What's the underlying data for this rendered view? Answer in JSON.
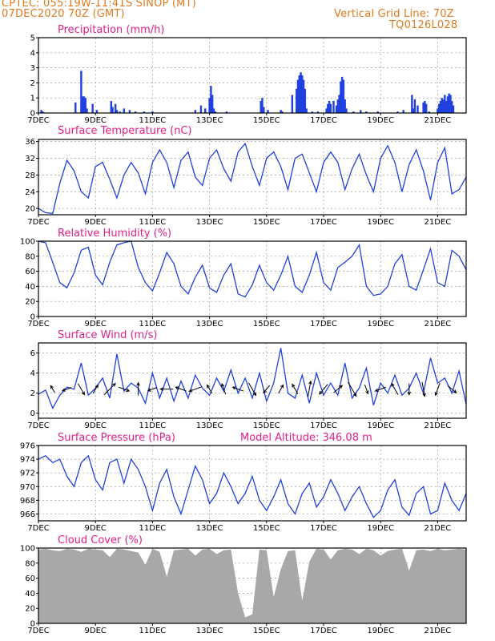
{
  "header": {
    "line1": "CPTEC:   055:19W-11:41S   SINOP (MT)",
    "line2": "07DEC2020 70Z (GMT)",
    "grid_note": "Vertical Grid Line: 70Z",
    "code": "TQ0126L028"
  },
  "colors": {
    "series": "#2040e0",
    "title": "#e0208a",
    "header": "#e07a20",
    "cloud": "#a8a8a8",
    "arrow": "#000000"
  },
  "x_ticks": [
    "7DEC",
    "9DEC",
    "11DEC",
    "13DEC",
    "15DEC",
    "17DEC",
    "19DEC",
    "21DEC"
  ],
  "x_tick_day": [
    7,
    9,
    11,
    13,
    15,
    17,
    19,
    21
  ],
  "x_range_days": [
    7,
    22
  ],
  "chart_data": [
    {
      "type": "bar",
      "title": "Precipitation (mm/h)",
      "ylim": [
        0,
        5
      ],
      "yticks": [
        0,
        1,
        2,
        3,
        4,
        5
      ],
      "x_day": [
        7.1,
        7.15,
        8.3,
        8.5,
        8.55,
        8.6,
        8.65,
        8.7,
        8.9,
        9.05,
        9.55,
        9.6,
        9.7,
        9.75,
        9.85,
        10.0,
        10.2,
        10.4,
        10.7,
        11.0,
        12.5,
        12.7,
        12.85,
        13.0,
        13.05,
        13.1,
        13.15,
        13.2,
        13.6,
        14.8,
        14.85,
        14.9,
        15.05,
        15.5,
        15.55,
        15.9,
        16.05,
        16.1,
        16.15,
        16.2,
        16.25,
        16.3,
        16.35,
        16.4,
        16.6,
        16.8,
        17.1,
        17.15,
        17.2,
        17.25,
        17.35,
        17.45,
        17.5,
        17.55,
        17.6,
        17.65,
        17.7,
        17.75,
        17.8,
        18.05,
        18.3,
        18.5,
        18.9,
        19.6,
        19.8,
        20.1,
        20.15,
        20.2,
        20.3,
        20.5,
        20.55,
        20.6,
        20.7,
        21.0,
        21.05,
        21.1,
        21.15,
        21.2,
        21.25,
        21.3,
        21.35,
        21.4,
        21.45,
        21.5,
        21.55
      ],
      "values": [
        0.2,
        0.1,
        0.7,
        2.8,
        1.1,
        1.1,
        1.0,
        0.3,
        0.6,
        0.2,
        0.8,
        0.4,
        0.6,
        0.2,
        0.1,
        0.3,
        0.2,
        0.1,
        0.1,
        0.1,
        0.2,
        0.5,
        0.3,
        1.0,
        1.8,
        1.2,
        0.3,
        0.1,
        0.1,
        0.8,
        1.0,
        0.4,
        0.2,
        0.2,
        0.1,
        1.2,
        1.6,
        2.2,
        2.5,
        2.7,
        2.5,
        2.2,
        1.6,
        0.3,
        0.1,
        0.1,
        0.3,
        0.6,
        0.8,
        0.6,
        0.8,
        0.5,
        0.9,
        1.2,
        2.1,
        2.4,
        2.2,
        0.9,
        0.3,
        0.1,
        0.2,
        0.1,
        0.1,
        0.1,
        0.2,
        1.2,
        0.3,
        0.9,
        0.5,
        0.7,
        0.8,
        0.6,
        0.1,
        0.3,
        0.6,
        0.8,
        1.0,
        0.9,
        1.2,
        0.8,
        1.1,
        1.3,
        1.2,
        0.8,
        0.5
      ]
    },
    {
      "type": "line",
      "title": "Surface Temperature (nC)",
      "ylim": [
        18.5,
        36.5
      ],
      "yticks": [
        20,
        24,
        28,
        32,
        36
      ],
      "x_day": [
        7.0,
        7.25,
        7.5,
        7.75,
        8.0,
        8.25,
        8.5,
        8.75,
        9.0,
        9.25,
        9.5,
        9.75,
        10.0,
        10.25,
        10.5,
        10.75,
        11.0,
        11.25,
        11.5,
        11.75,
        12.0,
        12.25,
        12.5,
        12.75,
        13.0,
        13.25,
        13.5,
        13.75,
        14.0,
        14.25,
        14.5,
        14.75,
        15.0,
        15.25,
        15.5,
        15.75,
        16.0,
        16.25,
        16.5,
        16.75,
        17.0,
        17.25,
        17.5,
        17.75,
        18.0,
        18.25,
        18.5,
        18.75,
        19.0,
        19.25,
        19.5,
        19.75,
        20.0,
        20.25,
        20.5,
        20.75,
        21.0,
        21.25,
        21.5,
        21.75,
        22.0
      ],
      "values": [
        20.0,
        19.0,
        18.8,
        26.0,
        31.5,
        29.0,
        24.0,
        22.5,
        30.0,
        31.0,
        27.0,
        22.5,
        28.0,
        31.0,
        28.5,
        23.5,
        31.0,
        34.0,
        31.0,
        25.0,
        31.5,
        33.5,
        27.5,
        25.5,
        32.0,
        34.0,
        29.5,
        26.5,
        33.5,
        35.5,
        30.0,
        25.5,
        32.0,
        33.5,
        30.0,
        24.5,
        32.0,
        33.0,
        28.5,
        24.0,
        31.0,
        33.5,
        31.0,
        24.5,
        29.5,
        33.0,
        28.0,
        24.0,
        32.0,
        35.0,
        31.0,
        24.0,
        30.5,
        34.0,
        29.0,
        22.0,
        31.0,
        34.5,
        23.5,
        24.5,
        27.5
      ]
    },
    {
      "type": "line",
      "title": "Relative Humidity (%)",
      "ylim": [
        0,
        100
      ],
      "yticks": [
        0,
        20,
        40,
        60,
        80,
        100
      ],
      "x_day": [
        7.0,
        7.25,
        7.5,
        7.75,
        8.0,
        8.25,
        8.5,
        8.75,
        9.0,
        9.25,
        9.5,
        9.75,
        10.0,
        10.25,
        10.5,
        10.75,
        11.0,
        11.25,
        11.5,
        11.75,
        12.0,
        12.25,
        12.5,
        12.75,
        13.0,
        13.25,
        13.5,
        13.75,
        14.0,
        14.25,
        14.5,
        14.75,
        15.0,
        15.25,
        15.5,
        15.75,
        16.0,
        16.25,
        16.5,
        16.75,
        17.0,
        17.25,
        17.5,
        17.75,
        18.0,
        18.25,
        18.5,
        18.75,
        19.0,
        19.25,
        19.5,
        19.75,
        20.0,
        20.25,
        20.5,
        20.75,
        21.0,
        21.25,
        21.5,
        21.75,
        22.0
      ],
      "values": [
        100,
        98,
        72,
        45,
        38,
        58,
        88,
        92,
        55,
        42,
        72,
        95,
        98,
        100,
        65,
        45,
        34,
        58,
        85,
        70,
        40,
        30,
        52,
        68,
        38,
        32,
        55,
        70,
        30,
        26,
        42,
        68,
        45,
        35,
        55,
        80,
        40,
        32,
        55,
        85,
        45,
        35,
        65,
        72,
        80,
        95,
        40,
        28,
        30,
        40,
        70,
        82,
        40,
        35,
        62,
        90,
        45,
        40,
        88,
        80,
        62
      ]
    },
    {
      "type": "line",
      "title": "Surface Wind (m/s)",
      "ylim": [
        -0.5,
        7.0
      ],
      "yticks": [
        0,
        2,
        4,
        6
      ],
      "x_day": [
        7.0,
        7.25,
        7.5,
        7.75,
        8.0,
        8.25,
        8.5,
        8.75,
        9.0,
        9.25,
        9.5,
        9.75,
        10.0,
        10.25,
        10.5,
        10.75,
        11.0,
        11.25,
        11.5,
        11.75,
        12.0,
        12.25,
        12.5,
        12.75,
        13.0,
        13.25,
        13.5,
        13.75,
        14.0,
        14.25,
        14.5,
        14.75,
        15.0,
        15.25,
        15.5,
        15.75,
        16.0,
        16.25,
        16.5,
        16.75,
        17.0,
        17.25,
        17.5,
        17.75,
        18.0,
        18.25,
        18.5,
        18.75,
        19.0,
        19.25,
        19.5,
        19.75,
        20.0,
        20.25,
        20.5,
        20.75,
        21.0,
        21.25,
        21.5,
        21.75,
        22.0
      ],
      "values": [
        1.9,
        2.3,
        0.5,
        1.8,
        2.6,
        2.4,
        5.0,
        1.8,
        2.5,
        3.5,
        1.5,
        5.9,
        2.2,
        3.0,
        2.5,
        1.0,
        4.0,
        1.5,
        3.5,
        1.2,
        3.2,
        1.5,
        3.8,
        2.5,
        1.8,
        3.5,
        2.2,
        4.3,
        2.0,
        3.5,
        1.5,
        4.0,
        1.2,
        3.0,
        6.5,
        2.0,
        1.5,
        3.8,
        1.0,
        4.0,
        1.8,
        3.0,
        1.8,
        5.0,
        1.5,
        2.5,
        4.5,
        0.8,
        3.0,
        2.0,
        3.8,
        1.8,
        2.5,
        4.0,
        2.0,
        5.5,
        3.0,
        3.5,
        2.0,
        4.2,
        0.9
      ],
      "vectors_x_day": [
        7.5,
        8.0,
        8.5,
        9.0,
        9.5,
        10.0,
        10.5,
        11.0,
        11.5,
        12.0,
        12.5,
        13.0,
        13.5,
        14.0,
        14.5,
        15.0,
        15.5,
        16.0,
        16.5,
        17.0,
        17.5,
        18.0,
        18.5,
        19.0,
        19.5,
        20.0,
        20.5,
        21.0,
        21.5
      ],
      "vectors_deg": [
        120,
        200,
        300,
        60,
        45,
        340,
        90,
        200,
        180,
        160,
        200,
        120,
        110,
        160,
        300,
        230,
        60,
        120,
        80,
        230,
        40,
        300,
        290,
        200,
        120,
        270,
        280,
        250,
        320
      ],
      "vectors_speed": [
        1.0,
        1.5,
        2.5,
        1.5,
        3.5,
        2.0,
        2.5,
        1.5,
        2.5,
        2.0,
        2.5,
        1.5,
        2.0,
        2.0,
        3.0,
        1.5,
        1.5,
        2.0,
        3.5,
        2.5,
        2.0,
        3.5,
        1.5,
        2.0,
        2.5,
        2.0,
        3.0,
        2.5,
        2.0
      ]
    },
    {
      "type": "line",
      "title": "Surface Pressure (hPa)",
      "subtitle": "Model Altitude: 346.08 m",
      "ylim": [
        965,
        976
      ],
      "yticks": [
        966,
        968,
        970,
        972,
        974,
        976
      ],
      "x_day": [
        7.0,
        7.25,
        7.5,
        7.75,
        8.0,
        8.25,
        8.5,
        8.75,
        9.0,
        9.25,
        9.5,
        9.75,
        10.0,
        10.25,
        10.5,
        10.75,
        11.0,
        11.25,
        11.5,
        11.75,
        12.0,
        12.25,
        12.5,
        12.75,
        13.0,
        13.25,
        13.5,
        13.75,
        14.0,
        14.25,
        14.5,
        14.75,
        15.0,
        15.25,
        15.5,
        15.75,
        16.0,
        16.25,
        16.5,
        16.75,
        17.0,
        17.25,
        17.5,
        17.75,
        18.0,
        18.25,
        18.5,
        18.75,
        19.0,
        19.25,
        19.5,
        19.75,
        20.0,
        20.25,
        20.5,
        20.75,
        21.0,
        21.25,
        21.5,
        21.75,
        22.0
      ],
      "values": [
        974.0,
        974.5,
        973.5,
        974.0,
        971.5,
        970.0,
        973.5,
        974.5,
        971.0,
        969.5,
        973.5,
        974.0,
        970.5,
        974.0,
        972.5,
        970.0,
        966.5,
        970.5,
        972.5,
        968.5,
        966.0,
        969.5,
        973.0,
        971.0,
        967.5,
        969.0,
        972.0,
        970.0,
        967.5,
        969.0,
        971.5,
        968.0,
        966.5,
        968.5,
        971.0,
        967.5,
        966.0,
        969.0,
        970.5,
        967.0,
        968.5,
        971.0,
        969.0,
        966.5,
        968.5,
        970.0,
        967.5,
        965.5,
        966.5,
        969.5,
        971.0,
        967.0,
        965.8,
        969.0,
        970.0,
        966.0,
        966.5,
        970.5,
        968.0,
        966.5,
        969.0
      ]
    },
    {
      "type": "area",
      "title": "Cloud Cover (%)",
      "ylim": [
        0,
        100
      ],
      "yticks": [
        0,
        20,
        40,
        60,
        80,
        100
      ],
      "x_day": [
        7.0,
        7.25,
        7.5,
        7.75,
        8.0,
        8.25,
        8.5,
        8.75,
        9.0,
        9.25,
        9.5,
        9.75,
        10.0,
        10.25,
        10.5,
        10.75,
        11.0,
        11.25,
        11.5,
        11.75,
        12.0,
        12.25,
        12.5,
        12.75,
        13.0,
        13.25,
        13.5,
        13.75,
        14.0,
        14.25,
        14.5,
        14.75,
        15.0,
        15.25,
        15.5,
        15.75,
        16.0,
        16.25,
        16.5,
        16.75,
        17.0,
        17.25,
        17.5,
        17.75,
        18.0,
        18.25,
        18.5,
        18.75,
        19.0,
        19.25,
        19.5,
        19.75,
        20.0,
        20.25,
        20.5,
        20.75,
        21.0,
        21.25,
        21.5,
        21.75,
        22.0
      ],
      "values": [
        98,
        99,
        97,
        96,
        99,
        98,
        95,
        99,
        98,
        97,
        88,
        99,
        98,
        96,
        94,
        78,
        99,
        95,
        62,
        97,
        98,
        99,
        90,
        98,
        99,
        92,
        97,
        98,
        40,
        8,
        12,
        98,
        97,
        35,
        72,
        96,
        97,
        30,
        82,
        99,
        98,
        85,
        97,
        99,
        98,
        92,
        99,
        97,
        90,
        96,
        98,
        99,
        70,
        97,
        98,
        96,
        99,
        97,
        98,
        99,
        98
      ]
    }
  ]
}
